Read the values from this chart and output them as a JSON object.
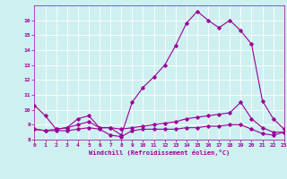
{
  "x": [
    0,
    1,
    2,
    3,
    4,
    5,
    6,
    7,
    8,
    9,
    10,
    11,
    12,
    13,
    14,
    15,
    16,
    17,
    18,
    19,
    20,
    21,
    22,
    23
  ],
  "line1": [
    10.3,
    9.6,
    8.7,
    8.8,
    9.4,
    9.6,
    8.8,
    8.8,
    8.3,
    10.5,
    11.5,
    12.2,
    13.0,
    14.3,
    15.8,
    16.6,
    16.0,
    15.5,
    16.0,
    15.3,
    14.4,
    10.6,
    9.4,
    8.7
  ],
  "line2": [
    8.7,
    8.6,
    8.6,
    8.6,
    8.7,
    8.8,
    8.7,
    8.3,
    8.2,
    8.6,
    8.7,
    8.7,
    8.7,
    8.7,
    8.8,
    8.8,
    8.9,
    8.9,
    9.0,
    9.0,
    8.7,
    8.4,
    8.3,
    8.5
  ],
  "line3": [
    8.7,
    8.6,
    8.7,
    8.8,
    9.0,
    9.2,
    8.8,
    8.8,
    8.7,
    8.8,
    8.9,
    9.0,
    9.1,
    9.2,
    9.4,
    9.5,
    9.6,
    9.7,
    9.8,
    10.5,
    9.4,
    8.8,
    8.5,
    8.5
  ],
  "line_color": "#990099",
  "bg_color": "#cef0f0",
  "ylim": [
    8,
    17
  ],
  "xlim": [
    0,
    23
  ],
  "xlabel": "Windchill (Refroidissement éolien,°C)",
  "yticks": [
    8,
    9,
    10,
    11,
    12,
    13,
    14,
    15,
    16
  ],
  "xticks": [
    0,
    1,
    2,
    3,
    4,
    5,
    6,
    7,
    8,
    9,
    10,
    11,
    12,
    13,
    14,
    15,
    16,
    17,
    18,
    19,
    20,
    21,
    22,
    23
  ]
}
